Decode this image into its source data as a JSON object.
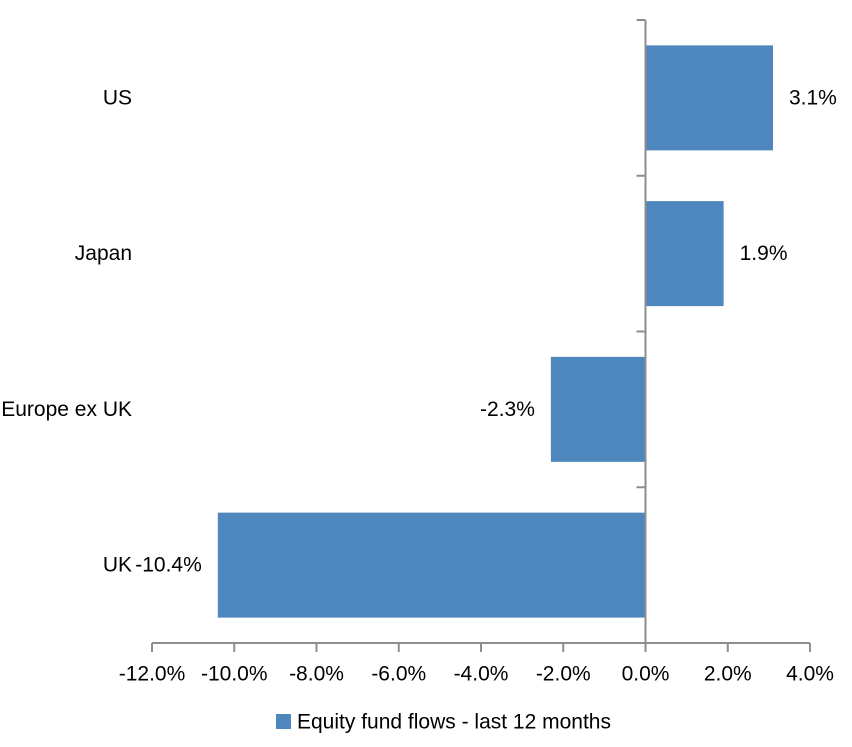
{
  "chart_data": {
    "type": "bar",
    "orientation": "horizontal",
    "title": "",
    "categories": [
      "US",
      "Japan",
      "Europe ex UK",
      "UK"
    ],
    "series": [
      {
        "name": "Equity fund flows - last 12 months",
        "values": [
          3.1,
          1.9,
          -2.3,
          -10.4
        ]
      }
    ],
    "data_labels": [
      "3.1%",
      "1.9%",
      "-2.3%",
      "-10.4%"
    ],
    "x_tick_labels": [
      "-12.0%",
      "-10.0%",
      "-8.0%",
      "-6.0%",
      "-4.0%",
      "-2.0%",
      "0.0%",
      "2.0%",
      "4.0%"
    ],
    "x_tick_values": [
      -12,
      -10,
      -8,
      -6,
      -4,
      -2,
      0,
      2,
      4
    ],
    "xlim": [
      -12,
      4
    ],
    "grid": false,
    "legend": {
      "position": "bottom",
      "label": "Equity fund flows - last 12 months"
    },
    "colors": {
      "bar": "#4E87BD",
      "axis": "#8E8E8E",
      "text": "#000000",
      "background": "#FFFFFF"
    }
  }
}
